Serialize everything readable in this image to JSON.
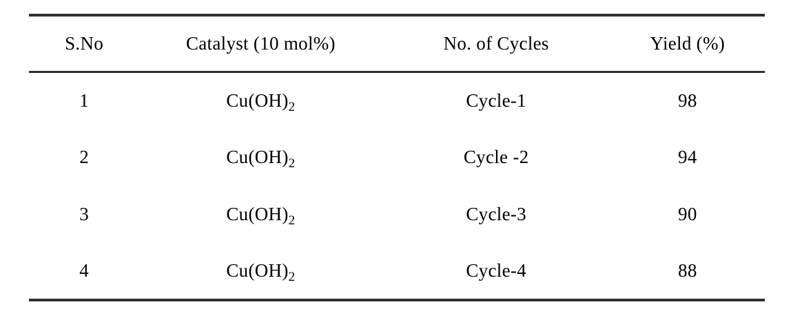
{
  "table": {
    "columns": [
      {
        "label": "S.No"
      },
      {
        "label": "Catalyst (10 mol%)"
      },
      {
        "label": "No. of Cycles"
      },
      {
        "label": "Yield (%)"
      }
    ],
    "rows": [
      {
        "sno": "1",
        "catalyst_base": "Cu(OH)",
        "catalyst_sub": "2",
        "cycles": "Cycle-1",
        "yield": "98"
      },
      {
        "sno": "2",
        "catalyst_base": "Cu(OH)",
        "catalyst_sub": "2",
        "cycles": "Cycle -2",
        "yield": "94"
      },
      {
        "sno": "3",
        "catalyst_base": "Cu(OH)",
        "catalyst_sub": "2",
        "cycles": "Cycle-3",
        "yield": "90"
      },
      {
        "sno": "4",
        "catalyst_base": "Cu(OH)",
        "catalyst_sub": "2",
        "cycles": "Cycle-4",
        "yield": "88"
      }
    ]
  },
  "colors": {
    "rule": "#2f2f2f",
    "text": "#000000",
    "background": "#ffffff"
  },
  "chart_data": {
    "type": "table",
    "columns": [
      "S.No",
      "Catalyst (10 mol%)",
      "No. of Cycles",
      "Yield (%)"
    ],
    "rows": [
      [
        "1",
        "Cu(OH)2",
        "Cycle-1",
        "98"
      ],
      [
        "2",
        "Cu(OH)2",
        "Cycle -2",
        "94"
      ],
      [
        "3",
        "Cu(OH)2",
        "Cycle-3",
        "90"
      ],
      [
        "4",
        "Cu(OH)2",
        "Cycle-4",
        "88"
      ]
    ]
  }
}
